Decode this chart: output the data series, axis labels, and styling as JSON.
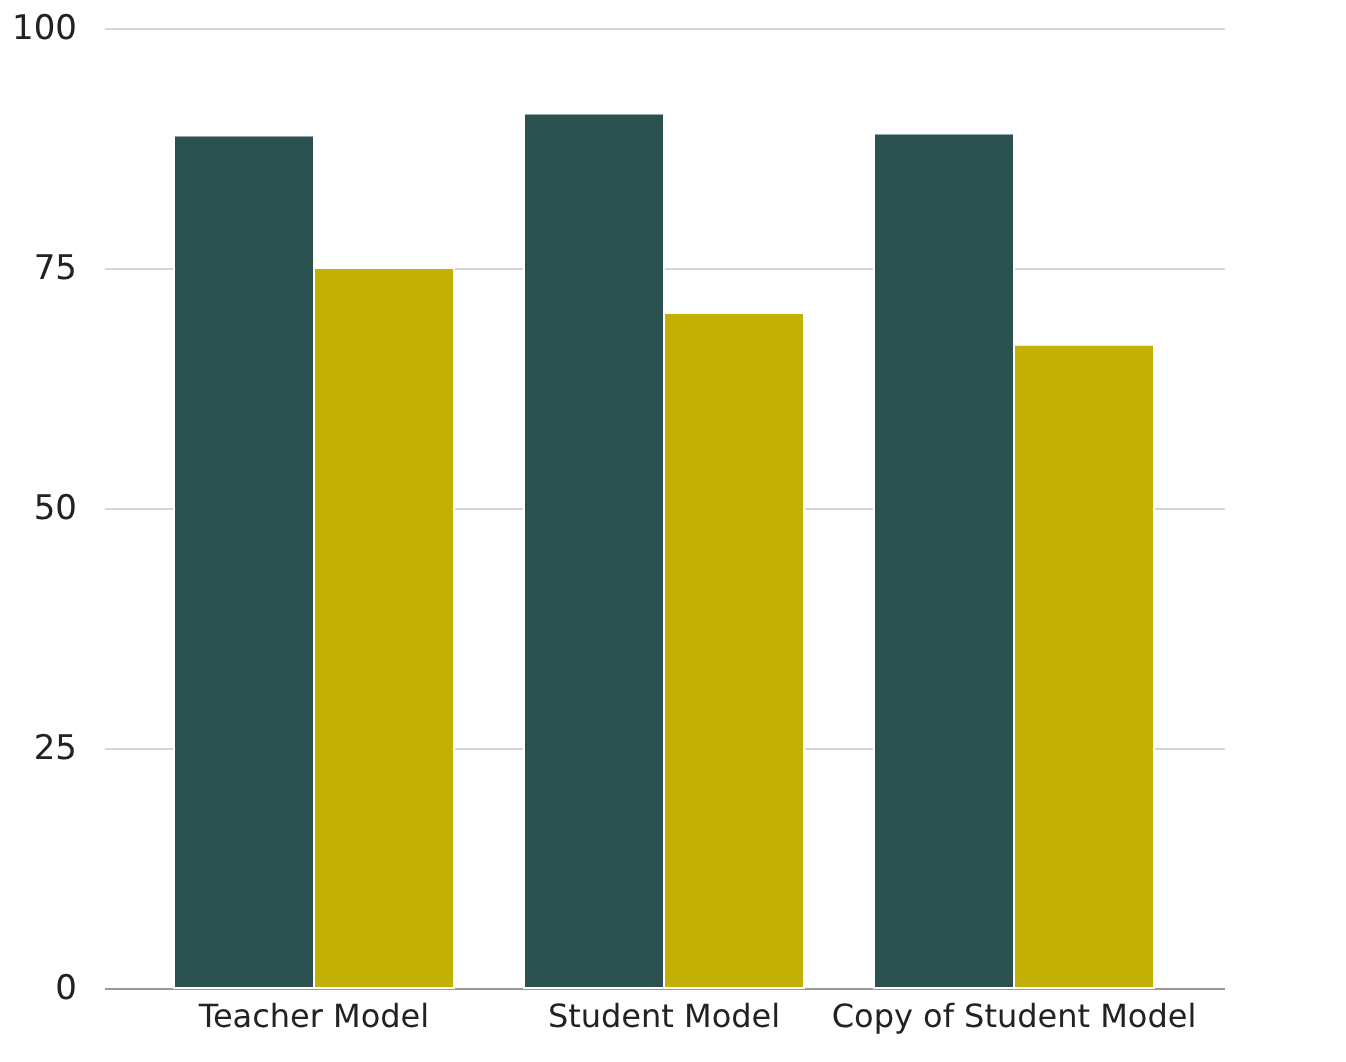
{
  "chart_data": {
    "type": "bar",
    "categories": [
      "Teacher Model",
      "Student Model",
      "Copy of Student Model"
    ],
    "series": [
      {
        "color": "#2a5050",
        "values": [
          88.8,
          91.1,
          89.0
        ]
      },
      {
        "color": "#c2b104",
        "values": [
          75.0,
          70.3,
          67.0
        ]
      }
    ],
    "ylim": [
      0,
      100
    ],
    "yticks": [
      0,
      25,
      50,
      75,
      100
    ],
    "grid": "y"
  }
}
